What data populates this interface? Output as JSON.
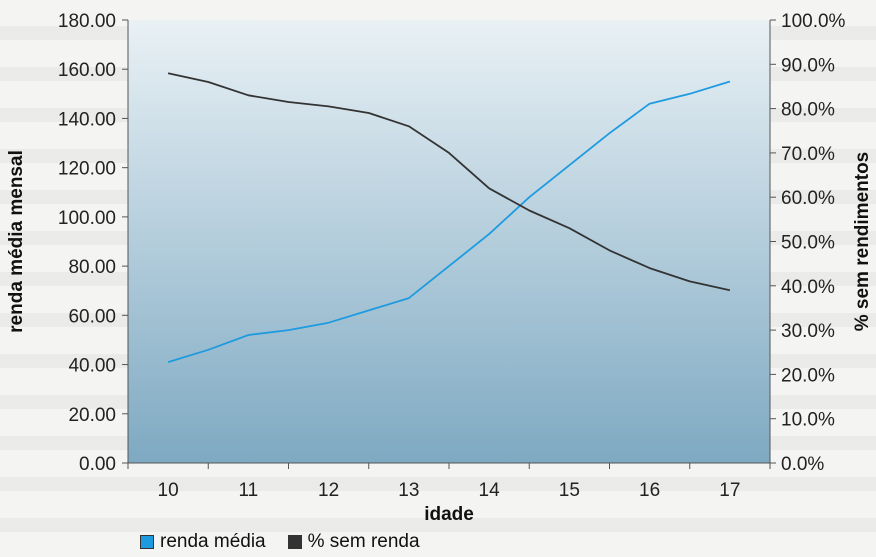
{
  "chart_data": {
    "type": "line",
    "xlabel": "idade",
    "ylabel_left": "renda média mensal",
    "ylabel_right": "% sem rendimentos",
    "x": [
      10,
      11,
      12,
      13,
      14,
      15,
      16,
      17
    ],
    "x_tick_labels": [
      "10",
      "11",
      "12",
      "13",
      "14",
      "15",
      "16",
      "17"
    ],
    "y_left_ticks": [
      "0.00",
      "20.00",
      "40.00",
      "60.00",
      "80.00",
      "100.00",
      "120.00",
      "140.00",
      "160.00",
      "180.00"
    ],
    "y_right_ticks": [
      "0.0%",
      "10.0%",
      "20.0%",
      "30.0%",
      "40.0%",
      "50.0%",
      "60.0%",
      "70.0%",
      "80.0%",
      "90.0%",
      "100.0%"
    ],
    "ylim_left": [
      0,
      180
    ],
    "ylim_right": [
      0,
      100
    ],
    "xlim": [
      9.5,
      17.5
    ],
    "series": [
      {
        "name": "renda média",
        "axis": "left",
        "color": "#1e9be0",
        "x": [
          10,
          10.5,
          11,
          11.5,
          12,
          12.5,
          13,
          13.5,
          14,
          14.5,
          15,
          15.5,
          16,
          16.5,
          17
        ],
        "values": [
          41,
          46,
          52,
          54,
          57,
          62,
          67,
          80,
          93,
          108,
          121,
          134,
          146,
          150,
          155
        ]
      },
      {
        "name": "% sem renda",
        "axis": "right",
        "color": "#333333",
        "x": [
          10,
          10.5,
          11,
          11.5,
          12,
          12.5,
          13,
          13.5,
          14,
          14.5,
          15,
          15.5,
          16,
          16.5,
          17
        ],
        "values": [
          88,
          86,
          83,
          81.5,
          80.5,
          79,
          76,
          70,
          62,
          57,
          53,
          48,
          44,
          41,
          39
        ]
      }
    ],
    "legend_position": "bottom",
    "grid": false
  }
}
